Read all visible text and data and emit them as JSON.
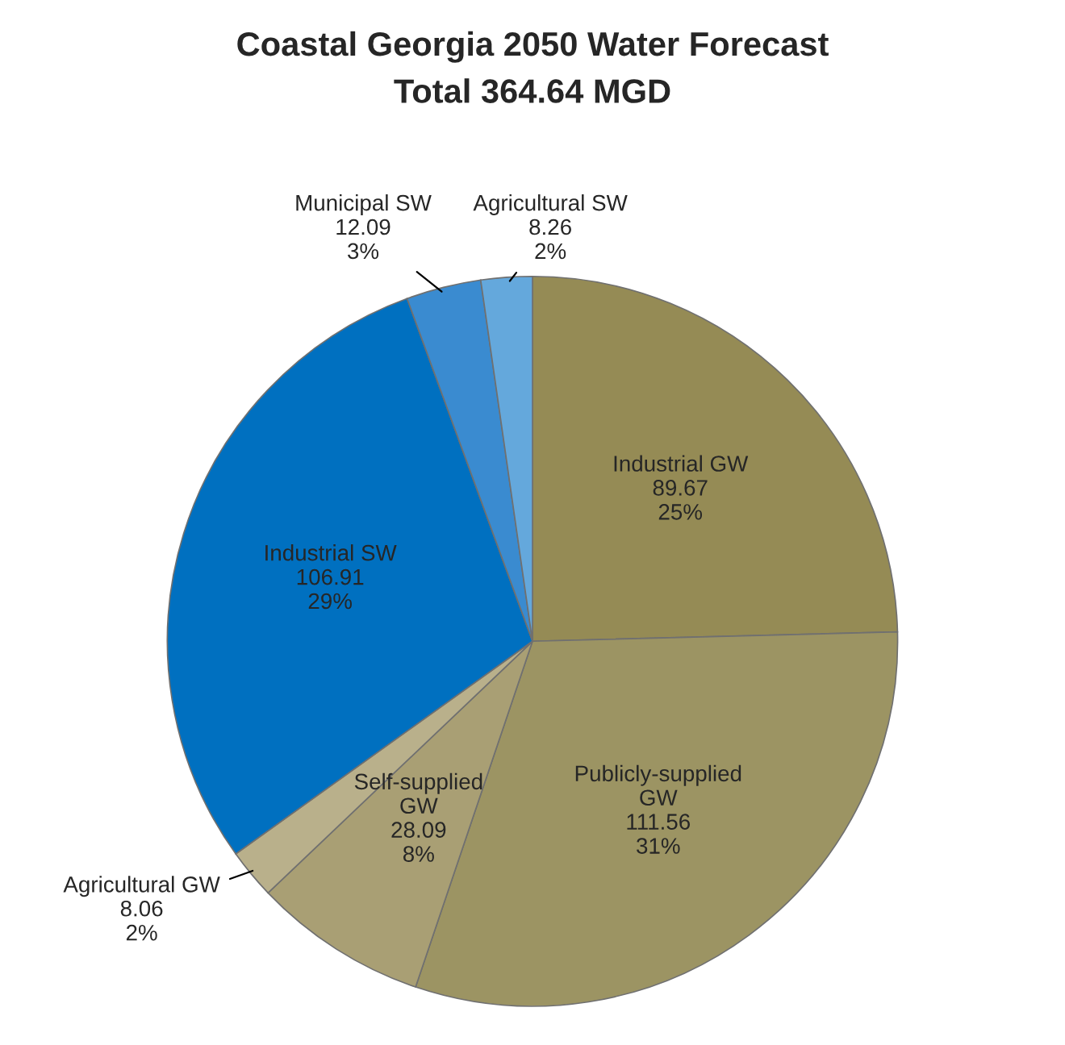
{
  "chart_data": {
    "type": "pie",
    "title": "Coastal Georgia 2050 Water Forecast",
    "subtitle": "Total 364.64 MGD",
    "categories": [
      "Industrial GW",
      "Publicly-supplied\nGW",
      "Self-supplied\nGW",
      "Agricultural GW",
      "Industrial SW",
      "Municipal SW",
      "Agricultural SW"
    ],
    "values": [
      89.67,
      111.56,
      28.09,
      8.06,
      106.91,
      12.09,
      8.26
    ],
    "value_labels": [
      "89.67\n25%",
      "111.56\n31%",
      "28.09\n8%",
      "8.06\n2%",
      "106.91\n29%",
      "12.09\n3%",
      "8.26\n2%"
    ],
    "colors": [
      "#958b55",
      "#9c9463",
      "#a99f74",
      "#b9b08b",
      "#0070c0",
      "#3a8bd0",
      "#64a8dc"
    ],
    "legend": false
  }
}
